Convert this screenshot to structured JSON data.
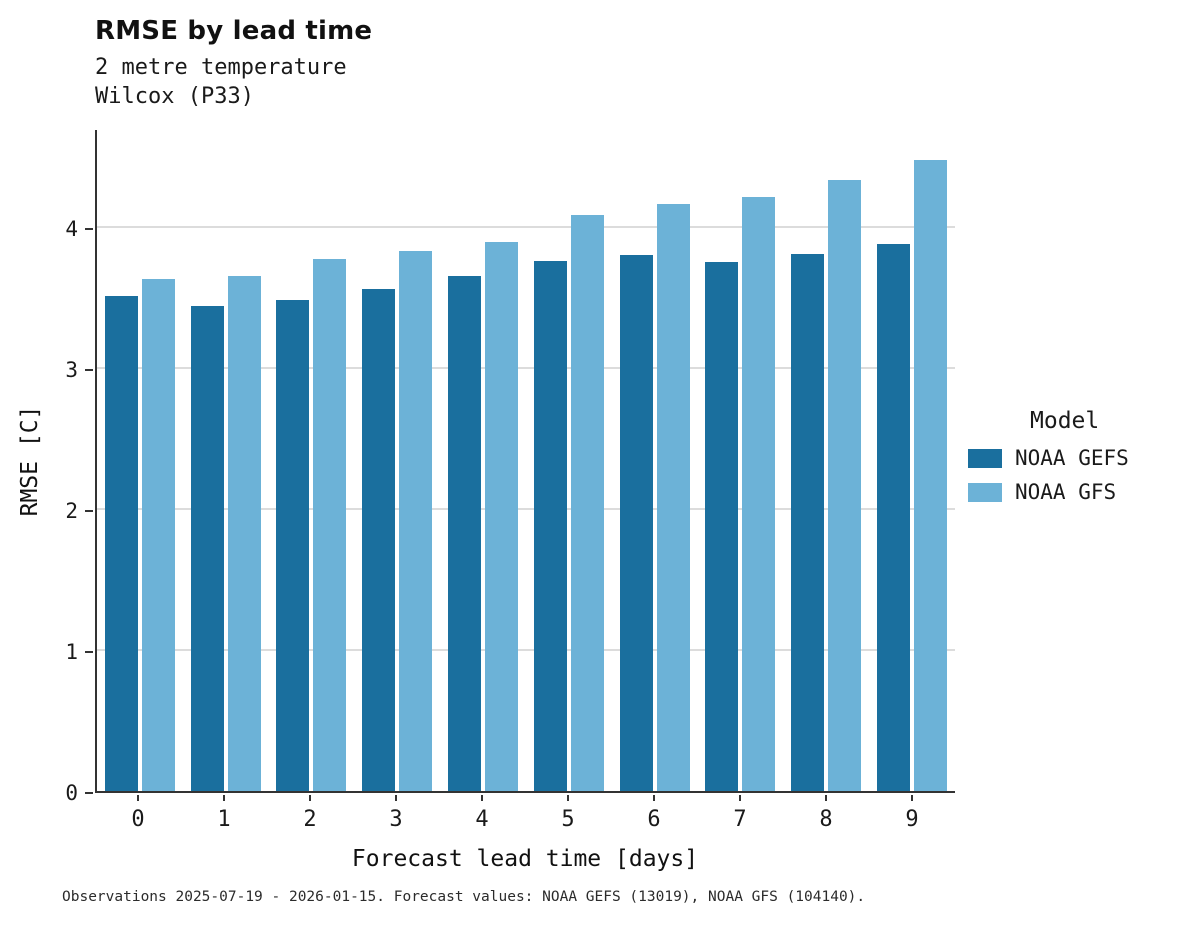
{
  "title": "RMSE by lead time",
  "subtitle_variable": "2 metre temperature",
  "subtitle_location": "Wilcox (P33)",
  "xlabel": "Forecast lead time [days]",
  "ylabel": "RMSE [C]",
  "caption": "Observations 2025-07-19 - 2026-01-15. Forecast values: NOAA GEFS (13019), NOAA GFS (104140).",
  "colors": {
    "gefs": "#1a6f9e",
    "gfs": "#6cb2d7",
    "axis": "#333333",
    "grid": "#dcdcdc"
  },
  "legend": {
    "title": "Model",
    "entries": [
      {
        "label": "NOAA GEFS",
        "color": "#1a6f9e"
      },
      {
        "label": "NOAA GFS",
        "color": "#6cb2d7"
      }
    ]
  },
  "chart_data": {
    "type": "bar",
    "title": "RMSE by lead time",
    "subtitle": [
      "2 metre temperature",
      "Wilcox (P33)"
    ],
    "xlabel": "Forecast lead time [days]",
    "ylabel": "RMSE [C]",
    "categories": [
      "0",
      "1",
      "2",
      "3",
      "4",
      "5",
      "6",
      "7",
      "8",
      "9"
    ],
    "series": [
      {
        "name": "NOAA GEFS",
        "color": "#1a6f9e",
        "values": [
          3.51,
          3.44,
          3.48,
          3.56,
          3.65,
          3.76,
          3.8,
          3.75,
          3.81,
          3.88
        ]
      },
      {
        "name": "NOAA GFS",
        "color": "#6cb2d7",
        "values": [
          3.63,
          3.65,
          3.77,
          3.83,
          3.89,
          4.08,
          4.16,
          4.21,
          4.33,
          4.47
        ]
      }
    ],
    "ylim": [
      0,
      4.7
    ],
    "yticks": [
      0,
      1,
      2,
      3,
      4
    ],
    "grid": true,
    "legend_position": "right"
  }
}
